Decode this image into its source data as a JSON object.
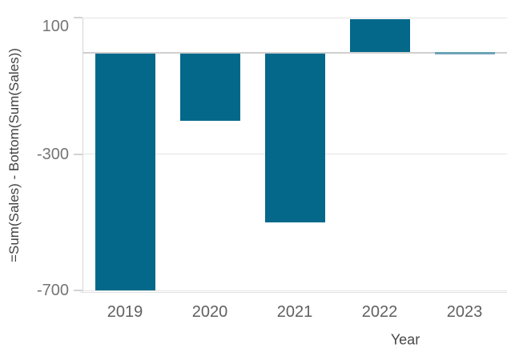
{
  "chart_data": {
    "type": "bar",
    "categories": [
      "2019",
      "2020",
      "2021",
      "2022",
      "2023"
    ],
    "values": [
      -700,
      -201,
      -500,
      97,
      -2
    ],
    "xlabel": "Year",
    "ylabel": "=Sum(Sales) - Bottom(Sum(Sales))",
    "yticks": [
      100,
      -300,
      -700
    ],
    "ytick_labels": [
      "100",
      "-300",
      "-700"
    ],
    "gridlines": [
      100,
      0,
      -300,
      -700
    ],
    "ylim": [
      -705,
      101
    ],
    "grid": "horizontal",
    "legend": "none",
    "bar_color": "#04688a",
    "thin_bar_color": "#6ba3b6",
    "zero_line_color": "#cfcfcf",
    "grid_color": "#e5e5e5",
    "axis_line_color": "#d6d6d6"
  }
}
